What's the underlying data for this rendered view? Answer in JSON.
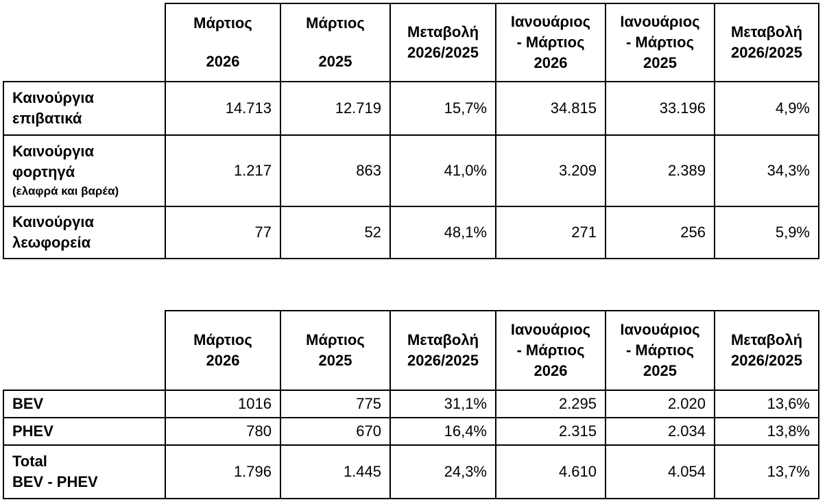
{
  "table1": {
    "headers": [
      [
        "Μάρτιος",
        "2026"
      ],
      [
        "Μάρτιος",
        "2025"
      ],
      [
        "Μεταβολή",
        "2026/2025"
      ],
      [
        "Ιανουάριος",
        "-  Μάρτιος",
        "2026"
      ],
      [
        "Ιανουάριος",
        "-  Μάρτιος",
        "2025"
      ],
      [
        "Μεταβολή",
        "2026/2025"
      ]
    ],
    "rows": [
      {
        "label": [
          "Καινούργια",
          "επιβατικά"
        ],
        "note": "",
        "values": [
          "14.713",
          "12.719",
          "15,7%",
          "34.815",
          "33.196",
          "4,9%"
        ]
      },
      {
        "label": [
          "Καινούργια",
          "φορτηγά"
        ],
        "note": "(ελαφρά και βαρέα)",
        "values": [
          "1.217",
          "863",
          "41,0%",
          "3.209",
          "2.389",
          "34,3%"
        ]
      },
      {
        "label": [
          "Καινούργια",
          "λεωφορεία"
        ],
        "note": "",
        "values": [
          "77",
          "52",
          "48,1%",
          "271",
          "256",
          "5,9%"
        ]
      }
    ]
  },
  "table2": {
    "headers": [
      [
        "Μάρτιος",
        "2026"
      ],
      [
        "Μάρτιος",
        "2025"
      ],
      [
        "Μεταβολή",
        "2026/2025"
      ],
      [
        "Ιανουάριος",
        "- Μάρτιος",
        "2026"
      ],
      [
        "Ιανουάριος",
        "- Μάρτιος",
        "2025"
      ],
      [
        "Μεταβολή",
        "2026/2025"
      ]
    ],
    "rows": [
      {
        "label": [
          "BEV"
        ],
        "values": [
          "1016",
          "775",
          "31,1%",
          "2.295",
          "2.020",
          "13,6%"
        ]
      },
      {
        "label": [
          "PHEV"
        ],
        "values": [
          "780",
          "670",
          "16,4%",
          "2.315",
          "2.034",
          "13,8%"
        ]
      },
      {
        "label": [
          "Total",
          "BEV - PHEV"
        ],
        "values": [
          "1.796",
          "1.445",
          "24,3%",
          "4.610",
          "4.054",
          "13,7%"
        ]
      }
    ]
  }
}
